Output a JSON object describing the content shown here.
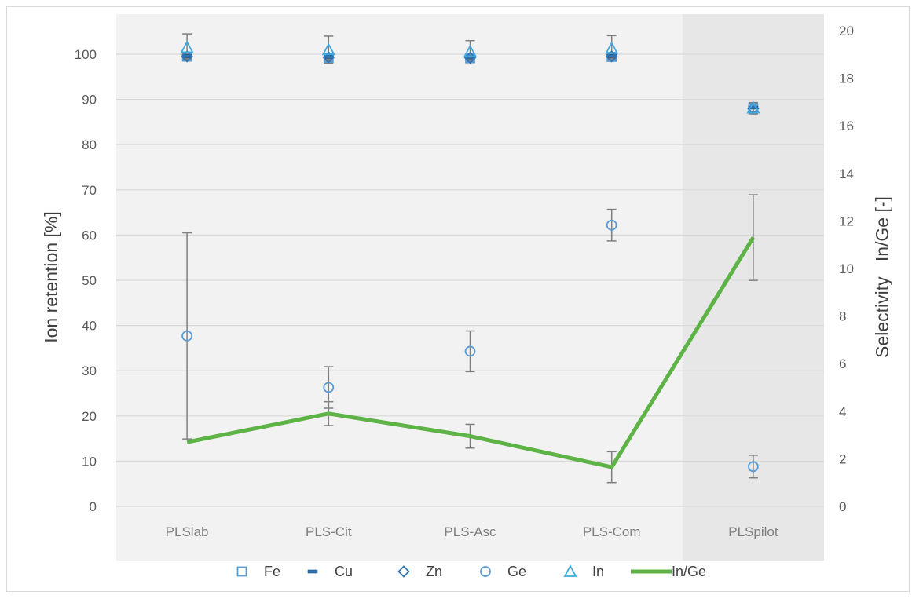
{
  "chart_data": {
    "type": "scatter",
    "categories": [
      "PLSlab",
      "PLS-Cit",
      "PLS-Asc",
      "PLS-Com",
      "PLSpilot"
    ],
    "highlighted_category": "PLSpilot",
    "ylabel_left": "Ion retention [%]",
    "ylabel_right": "Selectivity   In/Ge [-]",
    "ylim_left": [
      0,
      105
    ],
    "ylim_right": [
      0,
      20
    ],
    "yticks_left": [
      "0",
      "10",
      "20",
      "30",
      "40",
      "50",
      "60",
      "70",
      "80",
      "90",
      "100"
    ],
    "yticks_right": [
      "0",
      "2",
      "4",
      "6",
      "8",
      "10",
      "12",
      "14",
      "16",
      "18",
      "20"
    ],
    "grid": true,
    "legend_position": "bottom",
    "series": [
      {
        "name": "Fe",
        "marker": "square",
        "axis": "left",
        "color": "#5b9bd5",
        "values": [
          99.5,
          99.2,
          99.1,
          99.4,
          88.0
        ],
        "errors": [
          0.8,
          0.8,
          0.8,
          0.8,
          1.2
        ]
      },
      {
        "name": "Cu",
        "marker": "dash",
        "axis": "left",
        "color": "#2e75b6",
        "values": [
          99.6,
          99.4,
          99.3,
          99.6,
          88.2
        ],
        "errors": [
          0.5,
          0.5,
          0.5,
          0.5,
          1.0
        ]
      },
      {
        "name": "Zn",
        "marker": "diamond",
        "axis": "left",
        "color": "#2e75b6",
        "values": [
          99.5,
          99.3,
          99.2,
          99.5,
          88.0
        ],
        "errors": [
          0.6,
          0.6,
          0.6,
          0.6,
          1.0
        ]
      },
      {
        "name": "Ge",
        "marker": "circle",
        "axis": "left",
        "color": "#5b9bd5",
        "values": [
          37.7,
          26.3,
          34.3,
          62.2,
          8.8
        ],
        "errors": [
          22.8,
          4.6,
          4.5,
          3.5,
          2.5
        ]
      },
      {
        "name": "In",
        "marker": "triangle",
        "axis": "left",
        "color": "#40a9e0",
        "values": [
          101.5,
          101.0,
          100.6,
          101.3,
          88.1
        ],
        "errors": [
          3.0,
          3.0,
          2.4,
          2.8,
          1.2
        ]
      },
      {
        "name": "In/Ge",
        "marker": "line",
        "axis": "right",
        "color": "#5db346",
        "values": [
          2.7,
          3.9,
          2.95,
          1.65,
          11.3
        ],
        "errors": [
          0.0,
          0.5,
          0.5,
          0.65,
          1.8
        ]
      }
    ]
  }
}
